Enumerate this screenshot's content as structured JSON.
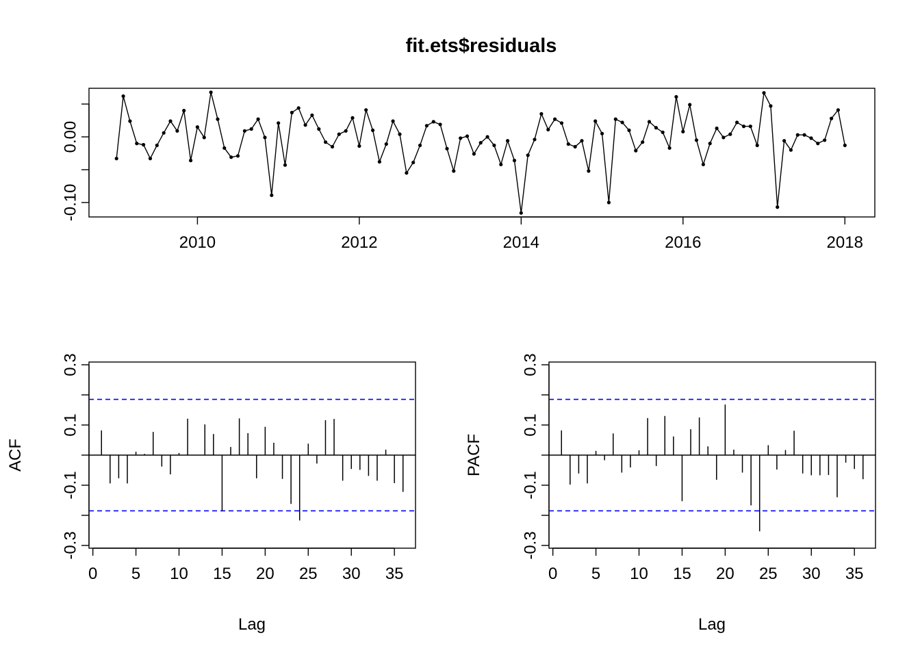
{
  "chart_data": [
    {
      "type": "line",
      "title": "fit.ets$residuals",
      "xlabel": "",
      "ylabel": "",
      "xlim": [
        2008.66,
        2018.37
      ],
      "ylim": [
        -0.122,
        0.074
      ],
      "x_ticks": [
        2010,
        2012,
        2014,
        2016,
        2018
      ],
      "x_tick_labels": [
        "2010",
        "2012",
        "2014",
        "2016",
        "2018"
      ],
      "y_ticks": [
        -0.1,
        -0.05,
        0.0,
        0.05
      ],
      "y_tick_labels": [
        "-0.10",
        "",
        "0.00",
        ""
      ],
      "x_start": 2009.0,
      "x_step": 0.0833333,
      "values": [
        -0.033,
        0.062,
        0.024,
        -0.01,
        -0.012,
        -0.033,
        -0.013,
        0.006,
        0.024,
        0.009,
        0.04,
        -0.036,
        0.015,
        -0.001,
        0.068,
        0.027,
        -0.017,
        -0.031,
        -0.029,
        0.009,
        0.012,
        0.027,
        -0.001,
        -0.089,
        0.021,
        -0.043,
        0.037,
        0.044,
        0.018,
        0.033,
        0.012,
        -0.008,
        -0.015,
        0.004,
        0.009,
        0.029,
        -0.014,
        0.041,
        0.01,
        -0.038,
        -0.011,
        0.024,
        0.004,
        -0.055,
        -0.039,
        -0.013,
        0.017,
        0.023,
        0.019,
        -0.018,
        -0.052,
        -0.002,
        0.001,
        -0.026,
        -0.009,
        0.0,
        -0.013,
        -0.042,
        -0.006,
        -0.036,
        -0.116,
        -0.028,
        -0.004,
        0.035,
        0.011,
        0.027,
        0.021,
        -0.011,
        -0.015,
        -0.006,
        -0.052,
        0.024,
        0.005,
        -0.1,
        0.027,
        0.022,
        0.01,
        -0.021,
        -0.008,
        0.023,
        0.014,
        0.007,
        -0.017,
        0.061,
        0.008,
        0.049,
        -0.005,
        -0.042,
        -0.01,
        0.013,
        -0.001,
        0.004,
        0.022,
        0.016,
        0.016,
        -0.013,
        0.067,
        0.047,
        -0.107,
        -0.006,
        -0.02,
        0.003,
        0.003,
        -0.002,
        -0.01,
        -0.005,
        0.028,
        0.041,
        -0.013
      ]
    },
    {
      "type": "bar",
      "title": "",
      "xlabel": "Lag",
      "ylabel": "ACF",
      "xlim": [
        -0.45,
        37.45
      ],
      "ylim": [
        -0.3,
        0.3
      ],
      "x_ticks": [
        0,
        5,
        10,
        15,
        20,
        25,
        30,
        35
      ],
      "x_tick_labels": [
        "0",
        "5",
        "10",
        "15",
        "20",
        "25",
        "30",
        "35"
      ],
      "y_ticks": [
        -0.3,
        -0.2,
        -0.1,
        0.0,
        0.1,
        0.2,
        0.3
      ],
      "y_tick_labels": [
        "-0.3",
        "",
        "-0.1",
        "",
        "0.1",
        "",
        "0.3"
      ],
      "confidence_bound": 0.185,
      "bound_color": "#0000ff",
      "lags": [
        1,
        2,
        3,
        4,
        5,
        6,
        7,
        8,
        9,
        10,
        11,
        12,
        13,
        14,
        15,
        16,
        17,
        18,
        19,
        20,
        21,
        22,
        23,
        24,
        25,
        26,
        27,
        28,
        29,
        30,
        31,
        32,
        33,
        34,
        35,
        36
      ],
      "values": [
        0.082,
        -0.094,
        -0.077,
        -0.094,
        0.011,
        0.004,
        0.077,
        -0.038,
        -0.064,
        0.007,
        0.121,
        0.0,
        0.102,
        0.07,
        -0.185,
        0.027,
        0.122,
        0.073,
        -0.077,
        0.094,
        0.041,
        -0.079,
        -0.162,
        -0.217,
        0.038,
        -0.028,
        0.116,
        0.12,
        -0.085,
        -0.046,
        -0.049,
        -0.069,
        -0.085,
        0.018,
        -0.093,
        -0.122
      ]
    },
    {
      "type": "bar",
      "title": "",
      "xlabel": "Lag",
      "ylabel": "PACF",
      "xlim": [
        -0.45,
        37.45
      ],
      "ylim": [
        -0.3,
        0.3
      ],
      "x_ticks": [
        0,
        5,
        10,
        15,
        20,
        25,
        30,
        35
      ],
      "x_tick_labels": [
        "0",
        "5",
        "10",
        "15",
        "20",
        "25",
        "30",
        "35"
      ],
      "y_ticks": [
        -0.3,
        -0.2,
        -0.1,
        0.0,
        0.1,
        0.2,
        0.3
      ],
      "y_tick_labels": [
        "-0.3",
        "",
        "-0.1",
        "",
        "0.1",
        "",
        "0.3"
      ],
      "confidence_bound": 0.185,
      "bound_color": "#0000ff",
      "lags": [
        1,
        2,
        3,
        4,
        5,
        6,
        7,
        8,
        9,
        10,
        11,
        12,
        13,
        14,
        15,
        16,
        17,
        18,
        19,
        20,
        21,
        22,
        23,
        24,
        25,
        26,
        27,
        28,
        29,
        30,
        31,
        32,
        33,
        34,
        35,
        36
      ],
      "values": [
        0.082,
        -0.098,
        -0.061,
        -0.094,
        0.014,
        -0.017,
        0.072,
        -0.058,
        -0.041,
        0.016,
        0.123,
        -0.036,
        0.13,
        0.062,
        -0.153,
        0.086,
        0.125,
        0.029,
        -0.082,
        0.168,
        0.018,
        -0.058,
        -0.167,
        -0.253,
        0.033,
        -0.048,
        0.017,
        0.081,
        -0.061,
        -0.067,
        -0.067,
        -0.066,
        -0.14,
        -0.025,
        -0.046,
        -0.08
      ]
    }
  ]
}
